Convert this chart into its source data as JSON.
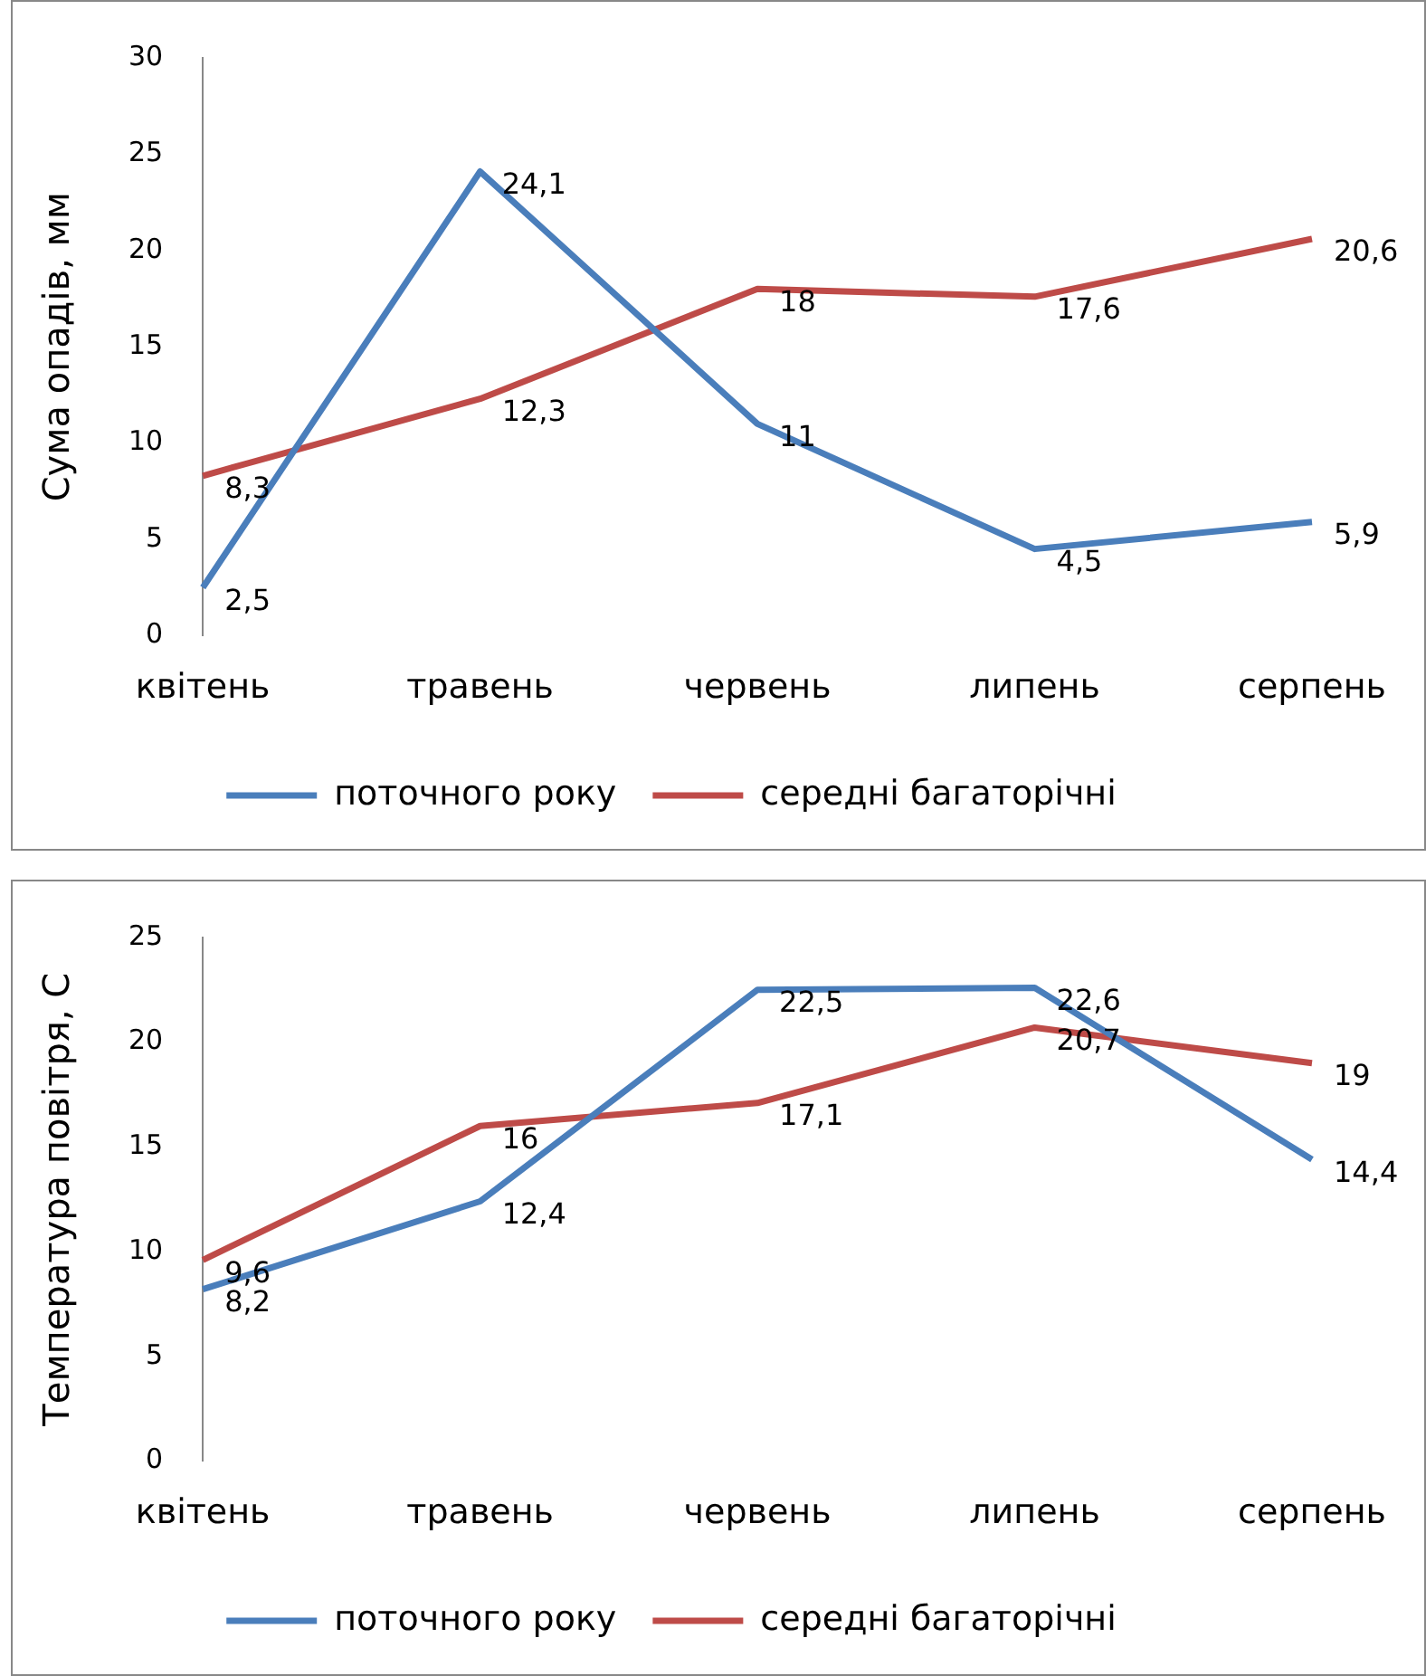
{
  "chart_data": [
    {
      "type": "line",
      "ylabel": "Сума опадів, мм",
      "categories": [
        "квітень",
        "травень",
        "червень",
        "липень",
        "серпень"
      ],
      "series": [
        {
          "name": "поточного року",
          "color": "#4a7ebb",
          "values": [
            2.5,
            24.1,
            11,
            4.5,
            5.9
          ],
          "value_labels": [
            "2,5",
            "24,1",
            "11",
            "4,5",
            "5,9"
          ]
        },
        {
          "name": "середні багаторічні",
          "color": "#be4b48",
          "values": [
            8.3,
            12.3,
            18,
            17.6,
            20.6
          ],
          "value_labels": [
            "8,3",
            "12,3",
            "18",
            "17,6",
            "20,6"
          ]
        }
      ],
      "ylim": [
        0,
        30
      ],
      "yticks": [
        0,
        5,
        10,
        15,
        20,
        25,
        30
      ],
      "grid": false,
      "legend": "bottom",
      "marker": "none",
      "line_style": "solid"
    },
    {
      "type": "line",
      "ylabel": "Температура повітря, С",
      "categories": [
        "квітень",
        "травень",
        "червень",
        "липень",
        "серпень"
      ],
      "series": [
        {
          "name": "поточного року",
          "color": "#4a7ebb",
          "values": [
            8.2,
            12.4,
            22.5,
            22.6,
            14.4
          ],
          "value_labels": [
            "8,2",
            "12,4",
            "22,5",
            "22,6",
            "14,4"
          ]
        },
        {
          "name": "середні багаторічні",
          "color": "#be4b48",
          "values": [
            9.6,
            16,
            17.1,
            20.7,
            19
          ],
          "value_labels": [
            "9,6",
            "16",
            "17,1",
            "20,7",
            "19"
          ]
        }
      ],
      "ylim": [
        0,
        25
      ],
      "yticks": [
        0,
        5,
        10,
        15,
        20,
        25
      ],
      "grid": false,
      "legend": "bottom",
      "marker": "none",
      "line_style": "solid"
    }
  ]
}
